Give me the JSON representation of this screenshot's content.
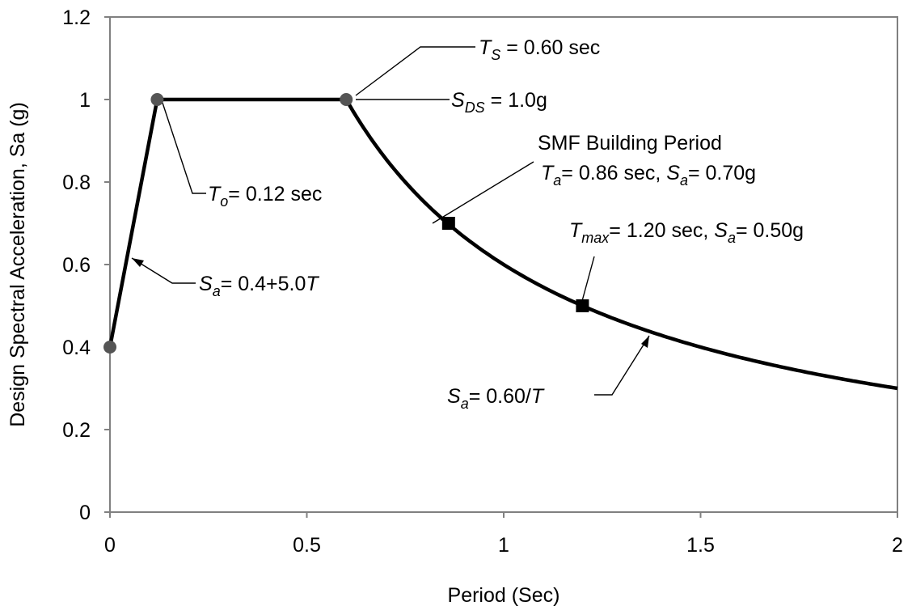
{
  "chart_data": {
    "type": "line",
    "xlabel": "Period (Sec)",
    "ylabel": "Design Spectral Acceleration, Sa (g)",
    "xlim": [
      0,
      2
    ],
    "ylim": [
      0,
      1.2
    ],
    "x_ticks": [
      "0",
      "0.5",
      "1",
      "1.5",
      "2"
    ],
    "y_ticks": [
      "0",
      "0.2",
      "0.4",
      "0.6",
      "0.8",
      "1",
      "1.2"
    ],
    "grid": false,
    "legend": "none",
    "series": [
      {
        "style": "black solid line",
        "segments": [
          {
            "kind": "linear",
            "x": [
              0,
              0.12
            ],
            "y": [
              0.4,
              1.0
            ]
          },
          {
            "kind": "constant",
            "x": [
              0.12,
              0.6
            ],
            "y": 1.0
          },
          {
            "kind": "reciprocal",
            "coefficient": 0.6,
            "x": [
              0.6,
              2.0
            ]
          }
        ]
      }
    ],
    "points": [
      {
        "x": 0,
        "y": 0.4,
        "marker": "circle"
      },
      {
        "x": 0.12,
        "y": 1.0,
        "marker": "circle"
      },
      {
        "x": 0.6,
        "y": 1.0,
        "marker": "circle"
      },
      {
        "x": 0.86,
        "y": 0.7,
        "marker": "square"
      },
      {
        "x": 1.2,
        "y": 0.5,
        "marker": "square"
      }
    ],
    "annotations": {
      "ts": {
        "sym": "T",
        "sub": "S",
        "text": " = 0.60 sec"
      },
      "sds": {
        "sym": "S",
        "sub": "DS",
        "text": " = 1.0g"
      },
      "to": {
        "sym": "T",
        "sub": "o",
        "text": "= 0.12 sec"
      },
      "smf_title": "SMF Building Period",
      "ta": {
        "sym": "T",
        "sub": "a",
        "text": "= 0.86 sec, ",
        "sym2": "S",
        "sub2": "a",
        "text2": "= 0.70g"
      },
      "tmax": {
        "sym": "T",
        "sub": "max",
        "text": "= 1.20 sec, ",
        "sym2": "S",
        "sub2": "a",
        "text2": "= 0.50g"
      },
      "rise": {
        "sym": "S",
        "sub": "a",
        "text": "= 0.4+5.0",
        "sym2": "T"
      },
      "decay": {
        "sym": "S",
        "sub": "a",
        "text": "= 0.60/",
        "sym2": "T"
      }
    },
    "colors": {
      "line": "#000000",
      "circle_marker": "#555555",
      "square_marker": "#000000",
      "frame": "#808080"
    }
  }
}
